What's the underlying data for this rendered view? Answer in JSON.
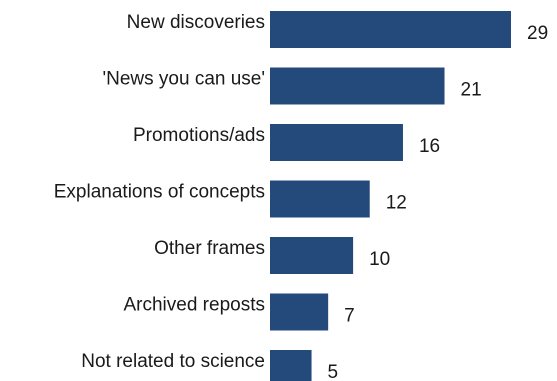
{
  "chart_data": {
    "type": "bar",
    "orientation": "horizontal",
    "categories": [
      "New discoveries",
      "'News you can use'",
      "Promotions/ads",
      "Explanations of concepts",
      "Other frames",
      "Archived reposts",
      "Not related to science"
    ],
    "values": [
      29,
      21,
      16,
      12,
      10,
      7,
      5
    ],
    "bar_color": "#244a7c",
    "title": "",
    "xlabel": "",
    "ylabel": "",
    "xlim": [
      0,
      29
    ],
    "grid": false,
    "legend": "none"
  }
}
